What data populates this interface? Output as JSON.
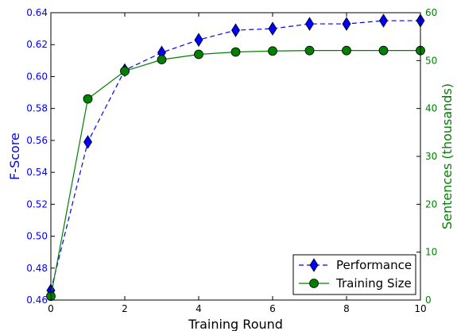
{
  "chart_data": {
    "type": "line",
    "x": [
      0,
      1,
      2,
      3,
      4,
      5,
      6,
      7,
      8,
      9,
      10
    ],
    "xlabel": "Training Round",
    "xlim": [
      0,
      10
    ],
    "x_ticks": [
      "0",
      "2",
      "4",
      "6",
      "8",
      "10"
    ],
    "y_left": {
      "label": "F-Score",
      "lim": [
        0.46,
        0.64
      ],
      "ticks": [
        "0.46",
        "0.48",
        "0.50",
        "0.52",
        "0.54",
        "0.56",
        "0.58",
        "0.60",
        "0.62",
        "0.64"
      ],
      "color": "#0000ff"
    },
    "y_right": {
      "label": "Sentences (thousands)",
      "lim": [
        0,
        60
      ],
      "ticks": [
        "0",
        "10",
        "20",
        "30",
        "40",
        "50",
        "60"
      ],
      "color": "#008000"
    },
    "series": [
      {
        "name": "Performance",
        "axis": "left",
        "line_style": "dashed",
        "marker": "diamond",
        "color": "#0000ff",
        "values": [
          0.466,
          0.559,
          0.604,
          0.615,
          0.623,
          0.629,
          0.63,
          0.633,
          0.633,
          0.635,
          0.635
        ]
      },
      {
        "name": "Training Size",
        "axis": "right",
        "line_style": "solid",
        "marker": "circle",
        "color": "#008000",
        "values": [
          0.8,
          42.0,
          47.8,
          50.2,
          51.3,
          51.8,
          52.0,
          52.1,
          52.1,
          52.1,
          52.1
        ]
      }
    ],
    "legend": {
      "placement": "lower-right",
      "entries": [
        "Performance",
        "Training Size"
      ]
    },
    "grid": false
  }
}
